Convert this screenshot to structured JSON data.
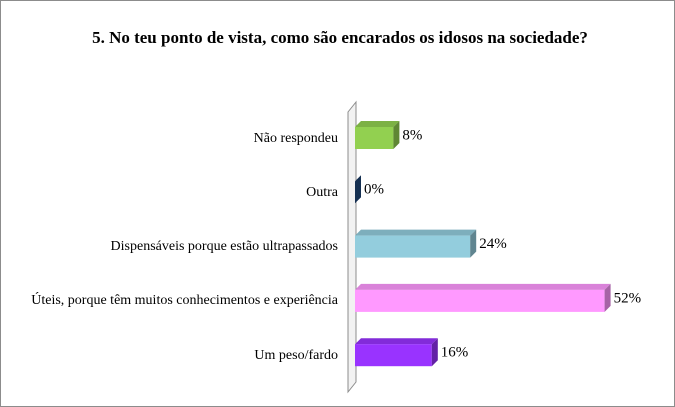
{
  "chart_data": {
    "type": "bar",
    "orientation": "horizontal",
    "title": "5. No teu ponto de vista, como são encarados os idosos na sociedade?",
    "categories": [
      "Não respondeu",
      "Outra",
      "Dispensáveis porque estão ultrapassados",
      "Úteis, porque têm muitos conhecimentos e experiência",
      "Um peso/fardo"
    ],
    "values": [
      8,
      0,
      24,
      52,
      16
    ],
    "value_labels": [
      "8%",
      "0%",
      "24%",
      "52%",
      "16%"
    ],
    "colors": [
      "#92d050",
      "#1f497d",
      "#93cddd",
      "#ff99ff",
      "#9933ff"
    ]
  }
}
